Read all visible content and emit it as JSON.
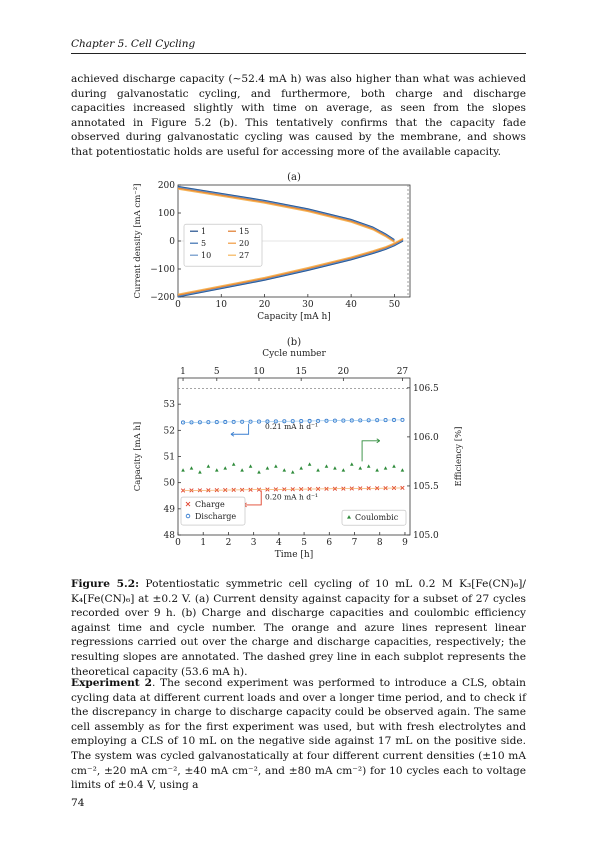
{
  "header": "Chapter 5.  Cell Cycling",
  "paragraph1": "achieved discharge capacity (∼52.4 mA h) was also higher than what was achieved during galvanostatic cycling, and furthermore, both charge and discharge capacities increased slightly with time on average, as seen from the slopes annotated in Figure 5.2 (b). This tentatively confirms that the capacity fade observed during galvanostatic cycling was caused by the membrane, and shows that potentiostatic holds are useful for accessing more of the available capacity.",
  "caption": {
    "label": "Figure 5.2:",
    "text": "Potentiostatic symmetric cell cycling of 10 mL 0.2 M K₃[Fe(CN)₆]/ K₄[Fe(CN)₆] at ±0.2 V. (a) Current density against capacity for a subset of 27 cycles recorded over 9 h. (b) Charge and discharge capacities and coulombic efficiency against time and cycle number. The orange and azure lines represent linear regressions carried out over the charge and discharge capacities, respectively; the resulting slopes are annotated. The dashed grey line in each subplot represents the theoretical capacity (53.6 mA h)."
  },
  "paragraph2": {
    "label": "Experiment 2",
    "text": ". The second experiment was performed to introduce a CLS, obtain cycling data at different current loads and over a longer time period, and to check if the discrepancy in charge to discharge capacity could be observed again. The same cell assembly as for the first experiment was used, but with fresh electrolytes and employing a CLS of 10 mL on the negative side against 17 mL on the positive side. The system was cycled galvanostatically at four different current densities (±10 mA cm⁻², ±20 mA cm⁻², ±40 mA cm⁻², and ±80 mA cm⁻²) for 10 cycles each to voltage limits of ±0.4 V, using a"
  },
  "page_number": "74",
  "chart_data": [
    {
      "type": "line",
      "title": "(a)",
      "xlabel": "Capacity [mA h]",
      "ylabel": "Current density [mA cm⁻²]",
      "xlim": [
        0,
        53.6
      ],
      "ylim": [
        -200,
        200
      ],
      "xticks": [
        0,
        10,
        20,
        30,
        40,
        50
      ],
      "yticks": [
        -200,
        -100,
        0,
        100,
        200
      ],
      "theoretical_capacity": 53.6,
      "legend_position": "center-left",
      "legend": [
        "1",
        "5",
        "10",
        "15",
        "20",
        "27"
      ],
      "colors": [
        "#1f4e8c",
        "#3a6fb0",
        "#6a95c8",
        "#e07a2a",
        "#f09a3e",
        "#f5b55a"
      ],
      "charge_curve": {
        "x": [
          0,
          10,
          20,
          30,
          40,
          45,
          48,
          50
        ],
        "y": [
          190,
          165,
          140,
          110,
          72,
          45,
          20,
          0
        ]
      },
      "discharge_curve": {
        "x": [
          0,
          10,
          20,
          30,
          40,
          45,
          48,
          50,
          52
        ],
        "y": [
          -195,
          -165,
          -135,
          -100,
          -62,
          -40,
          -25,
          -12,
          5
        ]
      }
    },
    {
      "type": "scatter",
      "title": "(b)",
      "top_xlabel": "Cycle number",
      "top_xticks": [
        1,
        5,
        10,
        15,
        20,
        27
      ],
      "xlabel": "Time [h]",
      "ylabel": "Capacity [mA h]",
      "y2label": "Efficiency [%]",
      "xlim": [
        0,
        9.2
      ],
      "ylim": [
        48,
        54
      ],
      "y2lim": [
        105,
        106.6
      ],
      "xticks": [
        0,
        1,
        2,
        3,
        4,
        5,
        6,
        7,
        8,
        9
      ],
      "yticks": [
        48,
        49,
        50,
        51,
        52,
        53
      ],
      "y2ticks": [
        105.0,
        105.5,
        106.0,
        106.5
      ],
      "theoretical_capacity": 53.6,
      "legend_left": [
        "Charge",
        "Discharge"
      ],
      "legend_right": [
        "Coulombic"
      ],
      "discharge_slope_label": "0.21 mA h d⁻¹",
      "charge_slope_label": "0.20 mA h d⁻¹",
      "discharge_color": "#3a7fd0",
      "charge_color": "#e0402a",
      "coulombic_color": "#2e8b3a",
      "charge": {
        "start": 49.7,
        "end": 49.8,
        "count": 27
      },
      "discharge": {
        "start": 52.3,
        "end": 52.4,
        "count": 27
      },
      "coulombic": {
        "values": [
          105.66,
          105.68,
          105.64,
          105.7,
          105.66,
          105.68,
          105.72,
          105.66,
          105.7,
          105.64,
          105.68,
          105.7,
          105.66,
          105.64,
          105.68,
          105.72,
          105.66,
          105.7,
          105.68,
          105.66,
          105.72,
          105.68,
          105.7,
          105.66,
          105.68,
          105.7,
          105.66
        ]
      }
    }
  ]
}
